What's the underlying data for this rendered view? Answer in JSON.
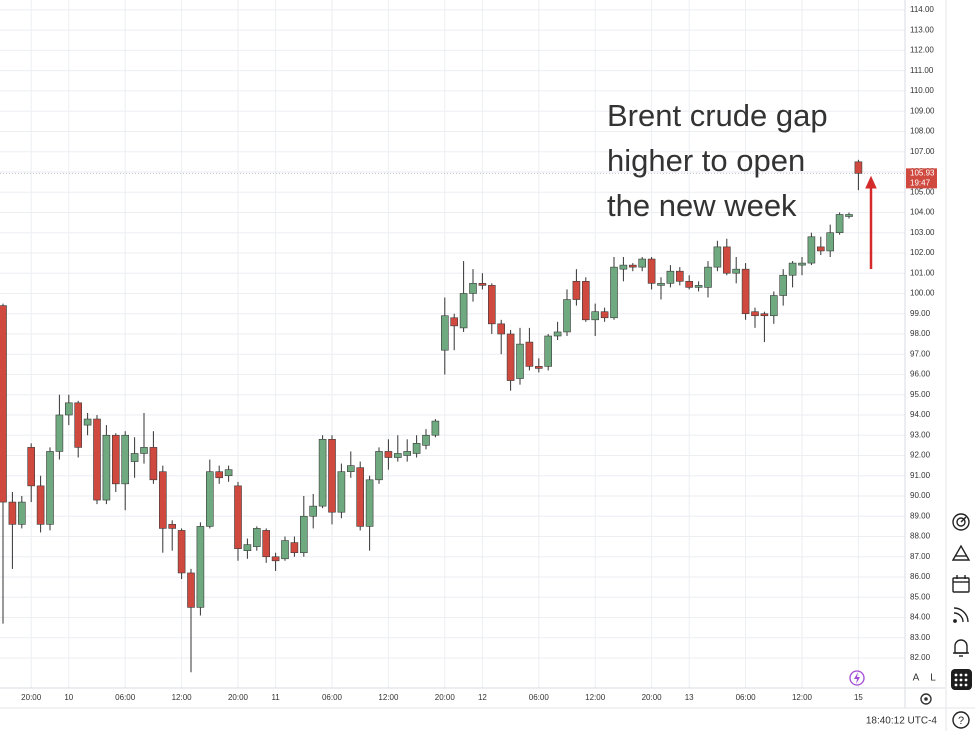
{
  "chart_data": {
    "type": "candlestick",
    "annotation": [
      "Brent crude gap",
      "higher to open",
      "the new week"
    ],
    "annotation_color": "#d42a2a",
    "categories": [
      null,
      null,
      null,
      "20:00",
      null,
      null,
      null,
      "10",
      null,
      null,
      null,
      null,
      null,
      "06:00",
      null,
      null,
      null,
      null,
      null,
      "12:00",
      null,
      null,
      null,
      null,
      null,
      "20:00",
      null,
      null,
      null,
      "11",
      null,
      null,
      null,
      null,
      null,
      "06:00",
      null,
      null,
      null,
      null,
      null,
      "12:00",
      null,
      null,
      null,
      null,
      null,
      "20:00",
      null,
      null,
      null,
      "12",
      null,
      null,
      null,
      null,
      null,
      "06:00",
      null,
      null,
      null,
      null,
      null,
      "12:00",
      null,
      null,
      null,
      null,
      null,
      "20:00",
      null,
      null,
      null,
      "13",
      null,
      null,
      null,
      null,
      null,
      "06:00",
      null,
      null,
      null,
      null,
      null,
      "12:00",
      null,
      null,
      null,
      null,
      null,
      "15"
    ],
    "open": [
      99.4,
      89.7,
      88.6,
      92.4,
      90.5,
      88.6,
      92.2,
      94.0,
      94.6,
      93.5,
      93.8,
      89.8,
      93.0,
      90.6,
      91.7,
      92.1,
      92.4,
      91.2,
      88.6,
      88.3,
      86.2,
      84.5,
      88.5,
      91.2,
      91.0,
      90.5,
      87.3,
      87.5,
      88.3,
      87.0,
      86.9,
      87.7,
      87.2,
      89.0,
      89.5,
      92.8,
      89.2,
      91.2,
      91.4,
      88.5,
      90.8,
      92.2,
      91.9,
      92.0,
      92.1,
      92.5,
      93.0,
      97.2,
      98.8,
      98.3,
      100.0,
      100.5,
      100.4,
      98.5,
      98.0,
      95.8,
      97.6,
      96.4,
      96.4,
      97.9,
      98.1,
      100.6,
      100.6,
      98.7,
      99.1,
      98.8,
      101.2,
      101.4,
      101.3,
      101.7,
      100.4,
      100.5,
      101.1,
      100.6,
      100.3,
      100.3,
      101.3,
      102.3,
      101.0,
      101.2,
      99.1,
      99.0,
      98.9,
      99.9,
      100.9,
      101.4,
      101.5,
      102.3,
      102.1,
      103.0,
      103.8,
      106.5
    ],
    "high": [
      99.5,
      90.2,
      90.0,
      92.6,
      91.0,
      92.4,
      95.0,
      95.0,
      94.7,
      94.1,
      94.0,
      93.5,
      93.1,
      93.2,
      92.9,
      94.1,
      93.2,
      91.5,
      88.8,
      88.4,
      86.4,
      88.7,
      91.8,
      91.5,
      91.5,
      90.7,
      87.9,
      88.5,
      88.4,
      87.2,
      88.0,
      88.0,
      90.0,
      90.1,
      93.0,
      93.0,
      91.6,
      92.2,
      91.7,
      91.0,
      92.4,
      92.8,
      93.0,
      92.8,
      93.0,
      93.3,
      93.8,
      99.8,
      99.0,
      101.6,
      101.2,
      101.0,
      100.5,
      98.7,
      98.2,
      98.3,
      98.3,
      96.8,
      98.0,
      98.6,
      100.2,
      101.2,
      100.8,
      99.5,
      99.3,
      101.8,
      101.8,
      101.5,
      101.8,
      101.8,
      100.8,
      101.4,
      101.3,
      100.9,
      100.6,
      101.6,
      102.6,
      102.7,
      101.8,
      101.5,
      99.3,
      99.1,
      100.1,
      101.2,
      101.6,
      101.8,
      103.0,
      102.8,
      103.4,
      104.0,
      104.0,
      106.6
    ],
    "low": [
      83.7,
      86.4,
      88.4,
      89.7,
      88.2,
      88.3,
      91.8,
      93.5,
      91.9,
      93.0,
      89.6,
      89.6,
      90.2,
      89.3,
      90.9,
      91.6,
      90.6,
      87.2,
      87.3,
      85.9,
      81.3,
      84.1,
      88.4,
      90.6,
      90.7,
      86.8,
      86.9,
      87.3,
      86.7,
      86.3,
      86.8,
      87.0,
      87.0,
      88.4,
      89.4,
      88.6,
      88.9,
      90.9,
      88.3,
      87.3,
      90.6,
      91.3,
      91.7,
      91.7,
      91.9,
      92.3,
      92.9,
      96.0,
      97.2,
      98.1,
      99.6,
      100.2,
      98.0,
      97.0,
      95.2,
      95.5,
      96.2,
      96.1,
      96.2,
      97.7,
      97.9,
      99.4,
      98.6,
      97.9,
      98.6,
      98.7,
      100.6,
      101.1,
      101.1,
      100.2,
      99.7,
      100.3,
      100.4,
      100.2,
      100.1,
      99.8,
      101.1,
      100.9,
      100.5,
      98.7,
      98.3,
      97.6,
      98.5,
      99.4,
      100.3,
      100.9,
      101.4,
      101.9,
      101.8,
      102.9,
      103.7,
      105.1
    ],
    "close": [
      89.7,
      88.6,
      89.7,
      90.5,
      88.6,
      92.2,
      94.0,
      94.6,
      92.4,
      93.8,
      89.8,
      93.0,
      90.6,
      93.0,
      92.1,
      92.4,
      90.8,
      88.4,
      88.4,
      86.2,
      84.5,
      88.5,
      91.2,
      90.9,
      91.3,
      87.4,
      87.6,
      88.4,
      87.0,
      86.8,
      87.8,
      87.2,
      89.0,
      89.5,
      92.8,
      89.2,
      91.2,
      91.5,
      88.5,
      90.8,
      92.2,
      91.9,
      92.1,
      92.2,
      92.6,
      93.0,
      93.7,
      98.9,
      98.4,
      100.0,
      100.5,
      100.4,
      98.5,
      98.0,
      95.7,
      97.5,
      96.4,
      96.3,
      97.9,
      98.1,
      99.7,
      99.7,
      98.7,
      99.1,
      98.8,
      101.3,
      101.4,
      101.3,
      101.7,
      100.5,
      100.5,
      101.1,
      100.6,
      100.3,
      100.4,
      101.3,
      102.3,
      101.0,
      101.2,
      99.0,
      98.9,
      98.9,
      99.9,
      100.9,
      101.5,
      101.5,
      102.8,
      102.1,
      103.0,
      103.9,
      103.9,
      105.93
    ],
    "up_color": "#6fa97f",
    "down_color": "#d0493f",
    "ylim": [
      80.52,
      114.49
    ],
    "yticks": [
      {
        "value": 114,
        "label": "114.00"
      },
      {
        "value": 113,
        "label": "113.00"
      },
      {
        "value": 112,
        "label": "112.00"
      },
      {
        "value": 111,
        "label": "111.00"
      },
      {
        "value": 110,
        "label": "110.00"
      },
      {
        "value": 109,
        "label": "109.00"
      },
      {
        "value": 108,
        "label": "108.00"
      },
      {
        "value": 107,
        "label": "107.00"
      },
      {
        "value": 106,
        "label": "106.00"
      },
      {
        "value": 105,
        "label": "105.00"
      },
      {
        "value": 104,
        "label": "104.00"
      },
      {
        "value": 103,
        "label": "103.00"
      },
      {
        "value": 102,
        "label": "102.00"
      },
      {
        "value": 101,
        "label": "101.00"
      },
      {
        "value": 100,
        "label": "100.00"
      },
      {
        "value": 99,
        "label": "99.00"
      },
      {
        "value": 98,
        "label": "98.00"
      },
      {
        "value": 97,
        "label": "97.00"
      },
      {
        "value": 96,
        "label": "96.00"
      },
      {
        "value": 95,
        "label": "95.00"
      },
      {
        "value": 94,
        "label": "94.00"
      },
      {
        "value": 93,
        "label": "93.00"
      },
      {
        "value": 92,
        "label": "92.00"
      },
      {
        "value": 91,
        "label": "91.00"
      },
      {
        "value": 90,
        "label": "90.00"
      },
      {
        "value": 89,
        "label": "89.00"
      },
      {
        "value": 88,
        "label": "88.00"
      },
      {
        "value": 87,
        "label": "87.00"
      },
      {
        "value": 86,
        "label": "86.00"
      },
      {
        "value": 85,
        "label": "85.00"
      },
      {
        "value": 84,
        "label": "84.00"
      },
      {
        "value": 83,
        "label": "83.00"
      },
      {
        "value": 82,
        "label": "82.00"
      }
    ],
    "grid": true,
    "last_price": {
      "value": 105.93,
      "label": "105.93"
    },
    "countdown": "19:47"
  },
  "ui": {
    "auto_button": "A",
    "log_button": "L",
    "clock": "18:40:12 UTC-4"
  }
}
